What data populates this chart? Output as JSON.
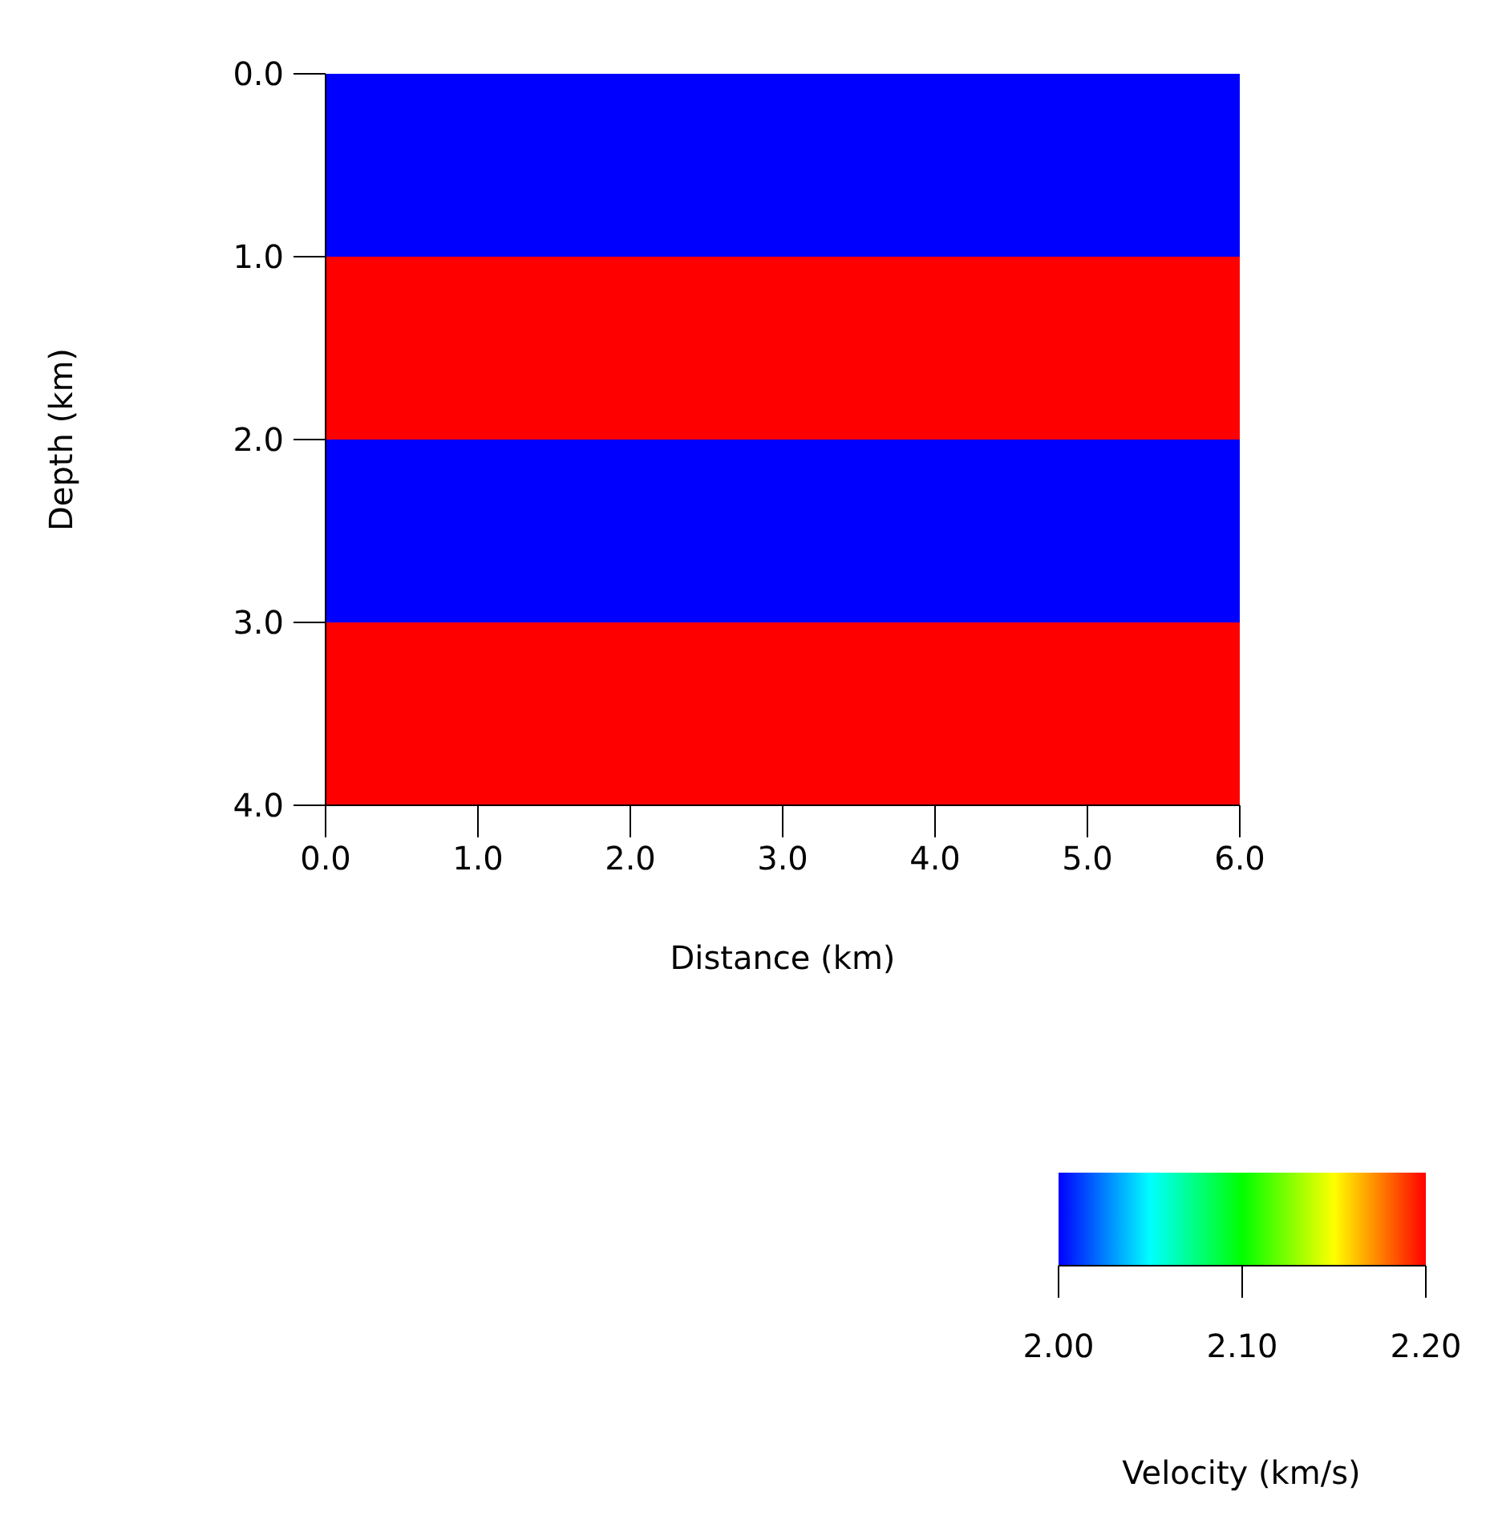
{
  "chart_data": {
    "type": "heatmap",
    "xlabel": "Distance (km)",
    "ylabel": "Depth (km)",
    "clabel": "Velocity (km/s)",
    "xlim": [
      0,
      6
    ],
    "xticks": [
      {
        "value": 0,
        "label": "0.0"
      },
      {
        "value": 1,
        "label": "1.0"
      },
      {
        "value": 2,
        "label": "2.0"
      },
      {
        "value": 3,
        "label": "3.0"
      },
      {
        "value": 4,
        "label": "4.0"
      },
      {
        "value": 5,
        "label": "5.0"
      },
      {
        "value": 6,
        "label": "6.0"
      }
    ],
    "ylim": [
      4,
      0
    ],
    "yticks": [
      {
        "value": 0,
        "label": "0.0"
      },
      {
        "value": 1,
        "label": "1.0"
      },
      {
        "value": 2,
        "label": "2.0"
      },
      {
        "value": 3,
        "label": "3.0"
      },
      {
        "value": 4,
        "label": "4.0"
      }
    ],
    "cells": [
      [
        2.0
      ],
      [
        2.2
      ],
      [
        2.0
      ],
      [
        2.2
      ]
    ],
    "clim": [
      2.0,
      2.2
    ],
    "cticks": [
      {
        "value": 2.0,
        "label": "2.00"
      },
      {
        "value": 2.1,
        "label": "2.10"
      },
      {
        "value": 2.2,
        "label": "2.20"
      }
    ]
  }
}
